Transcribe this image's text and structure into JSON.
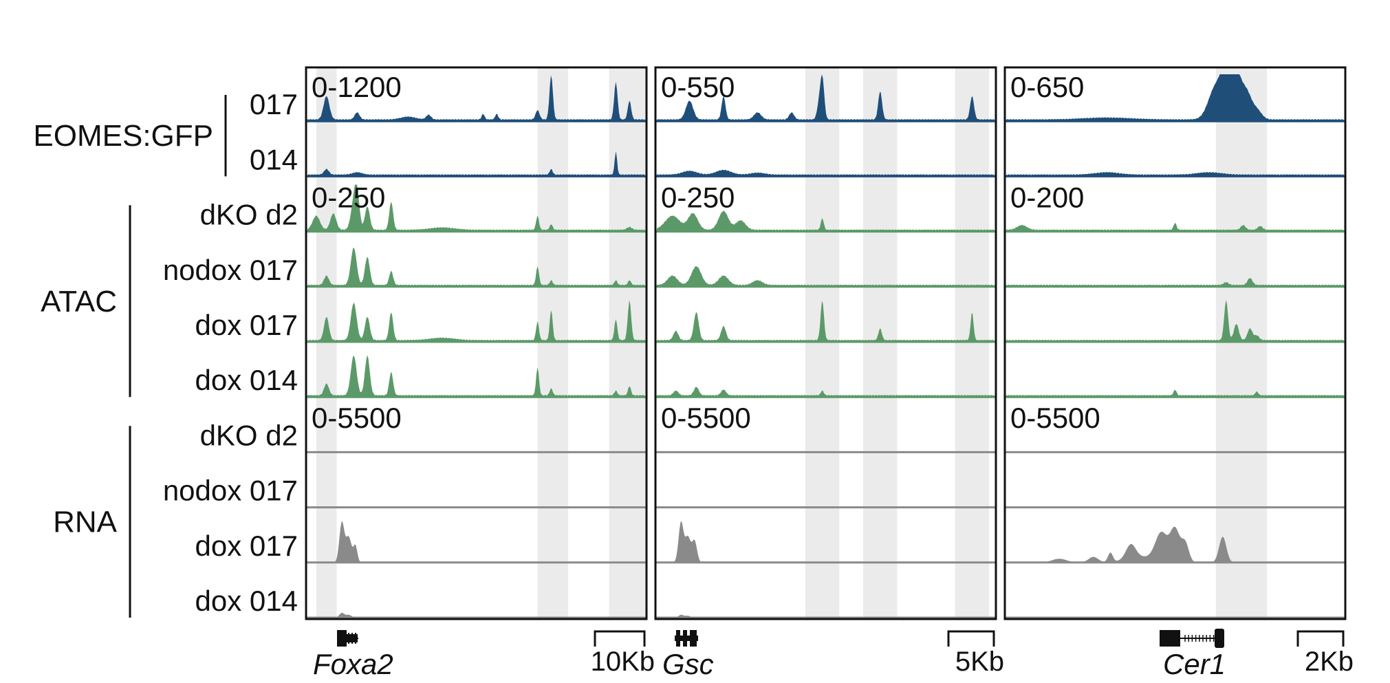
{
  "colors": {
    "chip": "#1f4e79",
    "atac": "#5b9a68",
    "rna": "#8a8a8a",
    "highlight": "#ebebeb",
    "frame": "#111111"
  },
  "groups": [
    {
      "name": "EOMES:GFP"
    },
    {
      "name": "ATAC"
    },
    {
      "name": "RNA"
    }
  ],
  "rows": [
    {
      "label": "017",
      "group": 0
    },
    {
      "label": "014",
      "group": 0
    },
    {
      "label": "dKO d2",
      "group": 1
    },
    {
      "label": "nodox 017",
      "group": 1
    },
    {
      "label": "dox 017",
      "group": 1
    },
    {
      "label": "dox 014",
      "group": 1
    },
    {
      "label": "dKO d2",
      "group": 2
    },
    {
      "label": "nodox 017",
      "group": 2
    },
    {
      "label": "dox 017",
      "group": 2
    },
    {
      "label": "dox 014",
      "group": 2
    }
  ],
  "panels": [
    {
      "gene": "Foxa2",
      "scale_bar": "10Kb",
      "ranges": [
        "0-1200",
        "0-250",
        "0-5500"
      ],
      "highlights": [
        [
          0.03,
          0.09
        ],
        [
          0.68,
          0.77
        ],
        [
          0.89,
          1.0
        ]
      ]
    },
    {
      "gene": "Gsc",
      "scale_bar": "5Kb",
      "ranges": [
        "0-550",
        "0-250",
        "0-5500"
      ],
      "highlights": [
        [
          0.44,
          0.54
        ],
        [
          0.61,
          0.71
        ],
        [
          0.88,
          0.98
        ]
      ]
    },
    {
      "gene": "Cer1",
      "scale_bar": "2Kb",
      "ranges": [
        "0-650",
        "0-200",
        "0-5500"
      ],
      "highlights": [
        [
          0.62,
          0.77
        ]
      ]
    }
  ],
  "tracks": [
    [
      [
        [
          0.06,
          0.5,
          0.012
        ],
        [
          0.15,
          0.15,
          0.01
        ],
        [
          0.36,
          0.1,
          0.01
        ],
        [
          0.52,
          0.12,
          0.006
        ],
        [
          0.56,
          0.12,
          0.006
        ],
        [
          0.68,
          0.2,
          0.008
        ],
        [
          0.72,
          0.95,
          0.007
        ],
        [
          0.91,
          0.8,
          0.007
        ],
        [
          0.95,
          0.4,
          0.007
        ],
        [
          0.3,
          0.06,
          0.03
        ]
      ],
      [
        [
          0.06,
          0.12,
          0.01
        ],
        [
          0.15,
          0.05,
          0.02
        ],
        [
          0.72,
          0.12,
          0.006
        ],
        [
          0.91,
          0.5,
          0.005
        ]
      ],
      [
        [
          0.03,
          0.3,
          0.015
        ],
        [
          0.08,
          0.35,
          0.012
        ],
        [
          0.14,
          0.55,
          0.012
        ],
        [
          0.15,
          0.7,
          0.01
        ],
        [
          0.18,
          0.5,
          0.01
        ],
        [
          0.25,
          0.6,
          0.008
        ],
        [
          0.68,
          0.3,
          0.006
        ],
        [
          0.72,
          0.12,
          0.006
        ],
        [
          0.95,
          0.06,
          0.01
        ],
        [
          0.4,
          0.05,
          0.05
        ]
      ],
      [
        [
          0.06,
          0.2,
          0.01
        ],
        [
          0.14,
          0.8,
          0.012
        ],
        [
          0.18,
          0.6,
          0.01
        ],
        [
          0.25,
          0.3,
          0.008
        ],
        [
          0.68,
          0.4,
          0.006
        ],
        [
          0.72,
          0.1,
          0.006
        ],
        [
          0.91,
          0.1,
          0.006
        ],
        [
          0.95,
          0.1,
          0.006
        ]
      ],
      [
        [
          0.06,
          0.5,
          0.01
        ],
        [
          0.14,
          0.8,
          0.012
        ],
        [
          0.18,
          0.5,
          0.01
        ],
        [
          0.25,
          0.6,
          0.008
        ],
        [
          0.68,
          0.4,
          0.006
        ],
        [
          0.72,
          0.65,
          0.006
        ],
        [
          0.91,
          0.45,
          0.006
        ],
        [
          0.95,
          0.85,
          0.007
        ],
        [
          0.4,
          0.05,
          0.05
        ]
      ],
      [
        [
          0.06,
          0.25,
          0.01
        ],
        [
          0.14,
          0.85,
          0.012
        ],
        [
          0.18,
          0.85,
          0.01
        ],
        [
          0.25,
          0.5,
          0.008
        ],
        [
          0.68,
          0.6,
          0.006
        ],
        [
          0.72,
          0.15,
          0.006
        ],
        [
          0.91,
          0.1,
          0.006
        ],
        [
          0.95,
          0.2,
          0.006
        ]
      ],
      [],
      [],
      [
        [
          0.105,
          0.85,
          0.01
        ],
        [
          0.125,
          0.55,
          0.012
        ],
        [
          0.145,
          0.35,
          0.008
        ]
      ],
      [
        [
          0.105,
          0.1,
          0.01
        ],
        [
          0.125,
          0.06,
          0.012
        ]
      ]
    ],
    [
      [
        [
          0.1,
          0.4,
          0.015
        ],
        [
          0.2,
          0.5,
          0.008
        ],
        [
          0.3,
          0.15,
          0.015
        ],
        [
          0.4,
          0.15,
          0.01
        ],
        [
          0.48,
          0.3,
          0.008
        ],
        [
          0.49,
          0.9,
          0.008
        ],
        [
          0.66,
          0.6,
          0.008
        ],
        [
          0.93,
          0.5,
          0.008
        ]
      ],
      [
        [
          0.1,
          0.08,
          0.03
        ],
        [
          0.2,
          0.1,
          0.03
        ],
        [
          0.3,
          0.04,
          0.03
        ]
      ],
      [
        [
          0.05,
          0.3,
          0.03
        ],
        [
          0.11,
          0.35,
          0.02
        ],
        [
          0.2,
          0.4,
          0.02
        ],
        [
          0.25,
          0.2,
          0.02
        ],
        [
          0.49,
          0.25,
          0.006
        ]
      ],
      [
        [
          0.05,
          0.2,
          0.02
        ],
        [
          0.12,
          0.4,
          0.02
        ],
        [
          0.2,
          0.2,
          0.02
        ],
        [
          0.3,
          0.1,
          0.02
        ]
      ],
      [
        [
          0.06,
          0.2,
          0.01
        ],
        [
          0.12,
          0.6,
          0.01
        ],
        [
          0.2,
          0.3,
          0.01
        ],
        [
          0.49,
          0.85,
          0.007
        ],
        [
          0.66,
          0.25,
          0.007
        ],
        [
          0.93,
          0.6,
          0.006
        ]
      ],
      [
        [
          0.06,
          0.1,
          0.01
        ],
        [
          0.12,
          0.18,
          0.01
        ],
        [
          0.2,
          0.12,
          0.01
        ],
        [
          0.49,
          0.1,
          0.006
        ]
      ],
      [],
      [],
      [
        [
          0.075,
          0.85,
          0.01
        ],
        [
          0.095,
          0.55,
          0.012
        ],
        [
          0.115,
          0.45,
          0.01
        ]
      ],
      [
        [
          0.075,
          0.06,
          0.01
        ],
        [
          0.095,
          0.04,
          0.012
        ]
      ]
    ],
    [
      [
        [
          0.62,
          0.7,
          0.03
        ],
        [
          0.65,
          0.85,
          0.02
        ],
        [
          0.68,
          0.95,
          0.02
        ],
        [
          0.71,
          0.55,
          0.02
        ],
        [
          0.74,
          0.2,
          0.02
        ],
        [
          0.3,
          0.04,
          0.1
        ]
      ],
      [
        [
          0.3,
          0.05,
          0.05
        ],
        [
          0.6,
          0.05,
          0.05
        ]
      ],
      [
        [
          0.05,
          0.1,
          0.02
        ],
        [
          0.5,
          0.15,
          0.006
        ],
        [
          0.7,
          0.1,
          0.01
        ],
        [
          0.75,
          0.08,
          0.01
        ]
      ],
      [
        [
          0.72,
          0.15,
          0.01
        ],
        [
          0.65,
          0.06,
          0.01
        ]
      ],
      [
        [
          0.65,
          0.85,
          0.008
        ],
        [
          0.68,
          0.35,
          0.01
        ],
        [
          0.72,
          0.25,
          0.01
        ],
        [
          0.74,
          0.1,
          0.01
        ]
      ],
      [
        [
          0.5,
          0.12,
          0.006
        ],
        [
          0.74,
          0.08,
          0.006
        ]
      ],
      [],
      [],
      [
        [
          0.16,
          0.08,
          0.03
        ],
        [
          0.26,
          0.12,
          0.02
        ],
        [
          0.31,
          0.2,
          0.01
        ],
        [
          0.37,
          0.3,
          0.02
        ],
        [
          0.46,
          0.6,
          0.025
        ],
        [
          0.5,
          0.7,
          0.02
        ],
        [
          0.53,
          0.4,
          0.015
        ],
        [
          0.64,
          0.55,
          0.015
        ],
        [
          0.4,
          0.12,
          0.06
        ]
      ],
      []
    ]
  ]
}
